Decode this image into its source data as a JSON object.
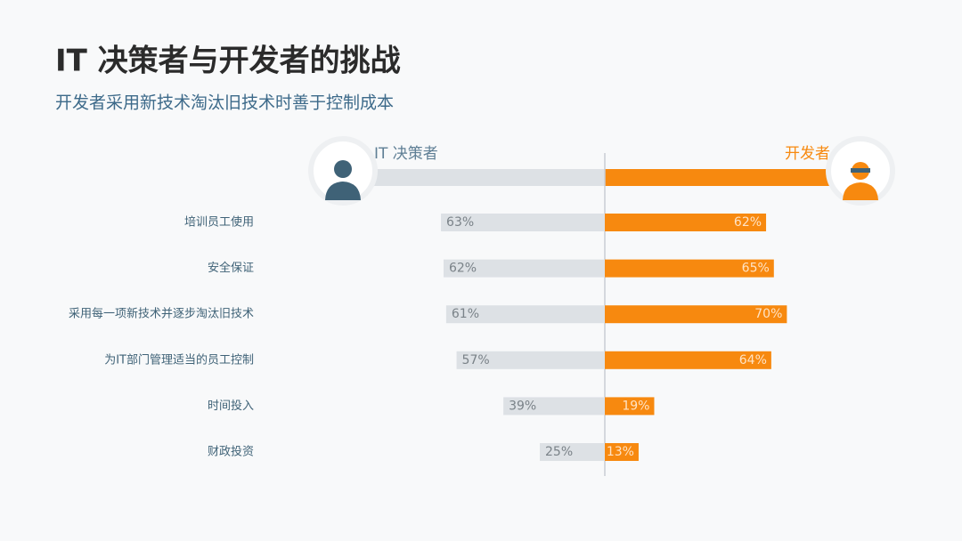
{
  "chart_data": {
    "type": "butterfly",
    "title": "IT 决策者与开发者的挑战",
    "subtitle": "开发者采用新技术淘汰旧技术时善于控制成本",
    "categories": [
      "培训员工使用",
      "安全保证",
      "采用每一项新技术并逐步淘汰旧技术",
      "为IT部门管理适当的员工控制",
      "时间投入",
      "财政投资"
    ],
    "series": [
      {
        "name": "IT 决策者",
        "color": "#dde1e5",
        "values": [
          63,
          62,
          61,
          57,
          39,
          25
        ],
        "value_labels": [
          "63%",
          "62%",
          "61%",
          "57%",
          "39%",
          "25%"
        ]
      },
      {
        "name": "开发者",
        "color": "#f7890f",
        "values": [
          62,
          65,
          70,
          64,
          19,
          13
        ],
        "value_labels": [
          "62%",
          "65%",
          "70%",
          "64%",
          "19%",
          "13%"
        ]
      }
    ]
  }
}
